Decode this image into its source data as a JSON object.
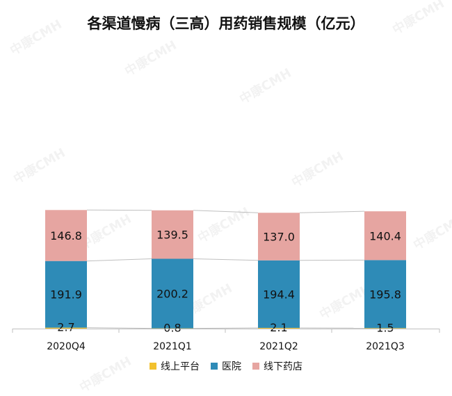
{
  "watermark": "中康CMH",
  "chart_data": {
    "type": "bar",
    "stacked": true,
    "title": "各渠道慢病（三高）用药销售规模（亿元）",
    "categories": [
      "2020Q4",
      "2021Q1",
      "2021Q2",
      "2021Q3"
    ],
    "series": [
      {
        "name": "线上平台",
        "values": [
          2.7,
          0.8,
          2.1,
          1.5
        ],
        "color": "#f2c12e"
      },
      {
        "name": "医院",
        "values": [
          191.9,
          200.2,
          194.4,
          195.8
        ],
        "color": "#2e8bb7"
      },
      {
        "name": "线下药店",
        "values": [
          146.8,
          139.5,
          137.0,
          140.4
        ],
        "color": "#e6a5a1"
      }
    ],
    "labels": [
      [
        "2.7",
        "0.8",
        "2.1",
        "1.5"
      ],
      [
        "191.9",
        "200.2",
        "194.4",
        "195.8"
      ],
      [
        "146.8",
        "139.5",
        "137.0",
        "140.4"
      ]
    ],
    "connector_lines": true,
    "legend_position": "bottom",
    "grid": false
  }
}
